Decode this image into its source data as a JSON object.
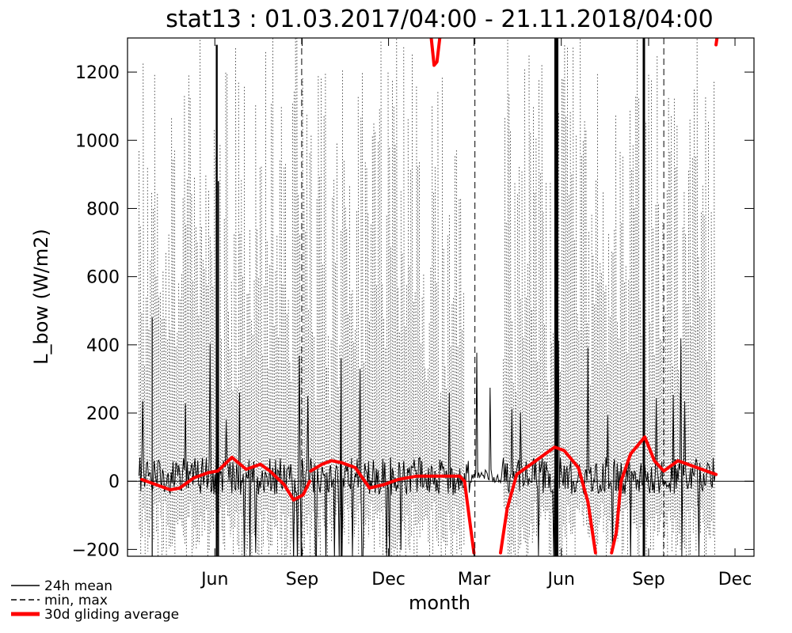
{
  "chart_data": {
    "type": "line",
    "title": "stat13 : 01.03.2017/04:00 - 21.11.2018/04:00",
    "xlabel": "month",
    "ylabel": "L_bow (W/m2)",
    "ylim": [
      -220,
      1300
    ],
    "yticks": [
      -200,
      0,
      200,
      400,
      600,
      800,
      1000,
      1200
    ],
    "xlim_days": [
      0,
      660
    ],
    "xticks": [
      {
        "label": "Jun",
        "day": 92
      },
      {
        "label": "Sep",
        "day": 184
      },
      {
        "label": "Dec",
        "day": 275
      },
      {
        "label": "Mar",
        "day": 365
      },
      {
        "label": "Jun",
        "day": 457
      },
      {
        "label": "Sep",
        "day": 549
      },
      {
        "label": "Dec",
        "day": 640
      }
    ],
    "zero_line": true,
    "legend": {
      "position": "bottom-left",
      "entries": [
        {
          "name": "24h mean",
          "style": "solid",
          "color": "#000000"
        },
        {
          "name": "min, max",
          "style": "dashed",
          "color": "#000000"
        },
        {
          "name": "30d gliding average",
          "style": "thick",
          "color": "#ff0000"
        }
      ]
    },
    "series": [
      {
        "name": "30d gliding average",
        "color": "#ff0000",
        "segments": [
          [
            [
              15,
              5
            ],
            [
              30,
              -10
            ],
            [
              45,
              -25
            ],
            [
              55,
              -20
            ],
            [
              70,
              10
            ],
            [
              85,
              25
            ],
            [
              95,
              30
            ],
            [
              110,
              70
            ],
            [
              125,
              35
            ],
            [
              140,
              50
            ],
            [
              150,
              30
            ],
            [
              165,
              -10
            ],
            [
              175,
              -55
            ],
            [
              185,
              -40
            ],
            [
              192,
              0
            ]
          ],
          [
            [
              193,
              30
            ],
            [
              205,
              50
            ],
            [
              215,
              60
            ],
            [
              225,
              55
            ],
            [
              240,
              40
            ],
            [
              255,
              -20
            ],
            [
              270,
              -10
            ],
            [
              285,
              5
            ],
            [
              305,
              15
            ],
            [
              330,
              15
            ],
            [
              350,
              15
            ],
            [
              355,
              0
            ],
            [
              365,
              -210
            ]
          ],
          [
            [
              393,
              -210
            ],
            [
              400,
              -80
            ],
            [
              410,
              20
            ],
            [
              425,
              50
            ],
            [
              440,
              80
            ],
            [
              450,
              100
            ],
            [
              460,
              90
            ],
            [
              475,
              40
            ],
            [
              485,
              -60
            ],
            [
              493,
              -210
            ]
          ],
          [
            [
              510,
              -210
            ],
            [
              515,
              -150
            ],
            [
              520,
              0
            ],
            [
              530,
              80
            ],
            [
              545,
              130
            ],
            [
              555,
              60
            ],
            [
              565,
              30
            ],
            [
              580,
              60
            ],
            [
              600,
              40
            ],
            [
              620,
              20
            ]
          ],
          [
            [
              320,
              1300
            ],
            [
              323,
              1220
            ],
            [
              326,
              1230
            ],
            [
              329,
              1300
            ]
          ],
          [
            [
              620,
              1280
            ],
            [
              621,
              1300
            ]
          ]
        ]
      }
    ]
  }
}
